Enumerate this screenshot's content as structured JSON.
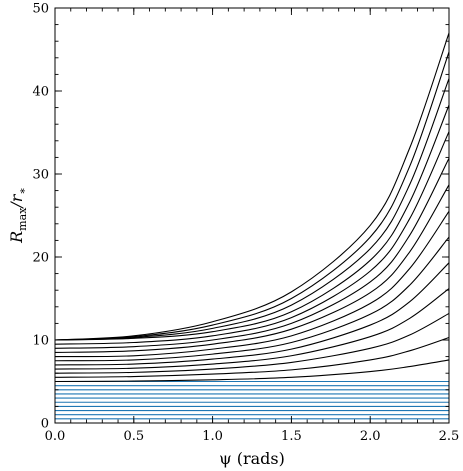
{
  "chart_data": {
    "type": "line",
    "title": "",
    "xlabel": "ψ (rads)",
    "ylabel": "R_max / r_*",
    "ylabel_main": "R",
    "ylabel_sub": "max",
    "ylabel_rest": "/r",
    "ylabel_star": "∗",
    "xlim": [
      0.0,
      2.5
    ],
    "ylim": [
      0,
      50
    ],
    "xticks": [
      0.0,
      0.5,
      1.0,
      1.5,
      2.0,
      2.5
    ],
    "xtick_labels": [
      "0.0",
      "0.5",
      "1.0",
      "1.5",
      "2.0",
      "2.5"
    ],
    "yticks": [
      0,
      10,
      20,
      30,
      40,
      50
    ],
    "ytick_labels": [
      "0",
      "10",
      "20",
      "30",
      "40",
      "50"
    ],
    "grid": false,
    "colors": {
      "black_series": "#000000",
      "blue_series": "#1f77b4"
    },
    "series": [
      {
        "group": "blue",
        "x": [
          0.0,
          2.5
        ],
        "y": [
          0.5,
          0.5
        ]
      },
      {
        "group": "blue",
        "x": [
          0.0,
          2.5
        ],
        "y": [
          1.0,
          1.0
        ]
      },
      {
        "group": "blue",
        "x": [
          0.0,
          2.5
        ],
        "y": [
          1.5,
          1.5
        ]
      },
      {
        "group": "blue",
        "x": [
          0.0,
          2.5
        ],
        "y": [
          2.0,
          2.0
        ]
      },
      {
        "group": "blue",
        "x": [
          0.0,
          2.5
        ],
        "y": [
          2.5,
          2.5
        ]
      },
      {
        "group": "blue",
        "x": [
          0.0,
          2.5
        ],
        "y": [
          3.0,
          3.0
        ]
      },
      {
        "group": "blue",
        "x": [
          0.0,
          2.5
        ],
        "y": [
          3.5,
          3.5
        ]
      },
      {
        "group": "blue",
        "x": [
          0.0,
          2.5
        ],
        "y": [
          4.0,
          4.0
        ]
      },
      {
        "group": "blue",
        "x": [
          0.0,
          2.5
        ],
        "y": [
          4.5,
          4.5
        ]
      },
      {
        "group": "blue",
        "x": [
          0.0,
          2.5
        ],
        "y": [
          5.0,
          5.0
        ]
      },
      {
        "group": "black",
        "x": [
          0.0,
          0.5,
          1.0,
          1.5,
          2.0,
          2.25,
          2.5
        ],
        "y": [
          5.0,
          5.05,
          5.2,
          5.5,
          6.2,
          6.8,
          7.6
        ]
      },
      {
        "group": "black",
        "x": [
          0.0,
          0.5,
          1.0,
          1.5,
          2.0,
          2.25,
          2.5
        ],
        "y": [
          5.5,
          5.6,
          5.9,
          6.4,
          7.6,
          8.7,
          10.3
        ]
      },
      {
        "group": "black",
        "x": [
          0.0,
          0.5,
          1.0,
          1.5,
          2.0,
          2.25,
          2.5
        ],
        "y": [
          6.0,
          6.1,
          6.5,
          7.3,
          9.0,
          10.6,
          13.2
        ]
      },
      {
        "group": "black",
        "x": [
          0.0,
          0.5,
          1.0,
          1.5,
          2.0,
          2.25,
          2.5
        ],
        "y": [
          6.5,
          6.6,
          7.1,
          8.1,
          10.4,
          12.6,
          16.2
        ]
      },
      {
        "group": "black",
        "x": [
          0.0,
          0.5,
          1.0,
          1.5,
          2.0,
          2.25,
          2.5
        ],
        "y": [
          7.0,
          7.1,
          7.7,
          8.9,
          11.8,
          14.6,
          19.3
        ]
      },
      {
        "group": "black",
        "x": [
          0.0,
          0.5,
          1.0,
          1.5,
          2.0,
          2.25,
          2.5
        ],
        "y": [
          7.5,
          7.6,
          8.3,
          9.7,
          13.1,
          16.6,
          22.4
        ]
      },
      {
        "group": "black",
        "x": [
          0.0,
          0.5,
          1.0,
          1.5,
          2.0,
          2.25,
          2.5
        ],
        "y": [
          8.0,
          8.1,
          8.9,
          10.5,
          14.4,
          18.6,
          25.5
        ]
      },
      {
        "group": "black",
        "x": [
          0.0,
          0.5,
          1.0,
          1.5,
          2.0,
          2.25,
          2.5
        ],
        "y": [
          8.5,
          8.7,
          9.5,
          11.3,
          15.7,
          20.6,
          28.7
        ]
      },
      {
        "group": "black",
        "x": [
          0.0,
          0.5,
          1.0,
          1.5,
          2.0,
          2.25,
          2.5
        ],
        "y": [
          9.0,
          9.2,
          10.0,
          12.0,
          17.0,
          22.6,
          31.9
        ]
      },
      {
        "group": "black",
        "x": [
          0.0,
          0.5,
          1.0,
          1.5,
          2.0,
          2.25,
          2.5
        ],
        "y": [
          9.5,
          9.7,
          10.5,
          12.7,
          18.3,
          24.6,
          35.1
        ]
      },
      {
        "group": "black",
        "x": [
          0.0,
          0.5,
          1.0,
          1.5,
          2.0,
          2.25,
          2.5
        ],
        "y": [
          10.0,
          10.2,
          11.0,
          13.4,
          19.6,
          26.6,
          38.3
        ]
      },
      {
        "group": "black",
        "x": [
          0.0,
          0.5,
          1.0,
          1.5,
          2.0,
          2.25,
          2.5
        ],
        "y": [
          10.0,
          10.3,
          11.4,
          14.2,
          21.0,
          28.7,
          41.5
        ]
      },
      {
        "group": "black",
        "x": [
          0.0,
          0.5,
          1.0,
          1.5,
          2.0,
          2.25,
          2.5
        ],
        "y": [
          10.0,
          10.4,
          11.8,
          15.0,
          22.4,
          30.9,
          44.7
        ]
      },
      {
        "group": "black",
        "x": [
          0.0,
          0.5,
          1.0,
          1.5,
          2.0,
          2.25,
          2.5
        ],
        "y": [
          10.0,
          10.5,
          12.2,
          15.8,
          23.8,
          33.1,
          47.0
        ]
      }
    ]
  }
}
